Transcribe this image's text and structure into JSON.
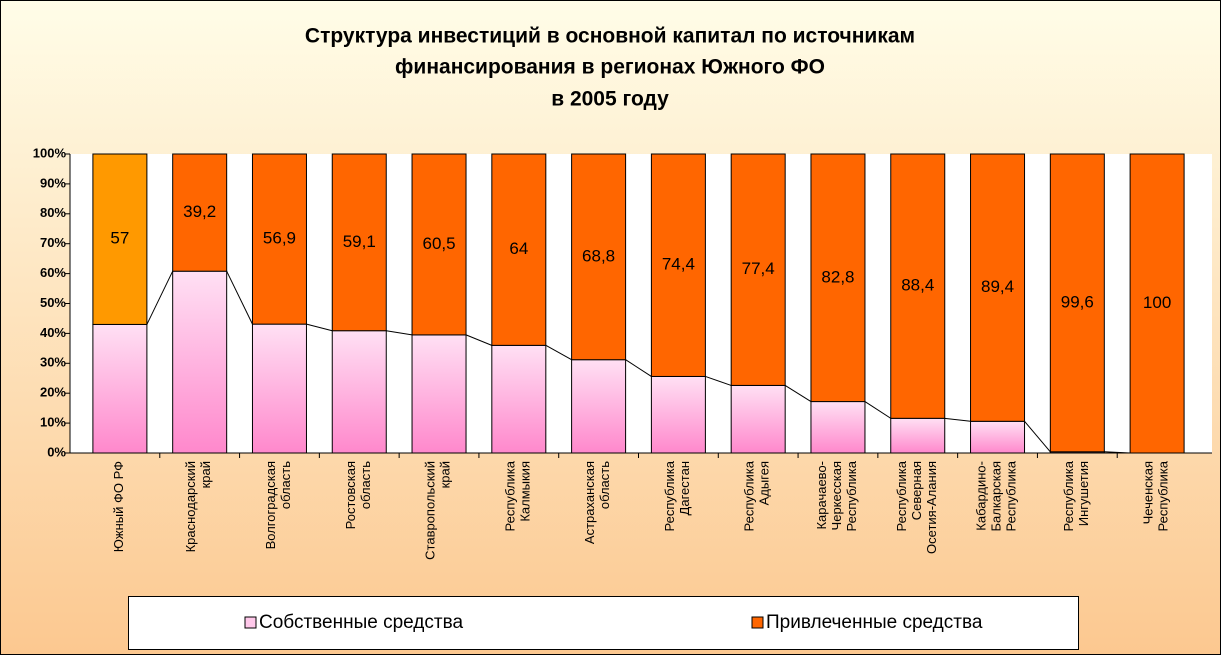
{
  "chart_data": {
    "type": "stacked_bar_100",
    "title": [
      "Структура инвестиций в основной капитал по источникам",
      "финансирования в регионах Южного ФО",
      "в 2005 году"
    ],
    "categories": [
      "Южный ФО РФ",
      "Краснодарский\nкрай",
      "Волгоградская\nобласть",
      "Ростовская\nобласть",
      "Ставропольский\nкрай",
      "Республика\nКалмыкия",
      "Астраханская\nобласть",
      "Республика\nДагестан",
      "Республика\nАдыгея",
      "Карачаево-\nЧеркесская\nРеспублика",
      "Республика\nСеверная\nОсетия-Алания",
      "Кабардино-\nБалкарская\nРеспублика",
      "Республика\nИнгушетия",
      "Чеченская\nРеспублика"
    ],
    "series": [
      {
        "name": "Собственные средства",
        "color": "#ff99d6",
        "values": [
          43,
          60.8,
          43.1,
          40.9,
          39.5,
          36,
          31.2,
          25.6,
          22.6,
          17.2,
          11.6,
          10.6,
          0.4,
          0
        ]
      },
      {
        "name": "Привлеченные средства",
        "color": "#ff6600",
        "colors": [
          "#ff9900",
          "#ff6600",
          "#ff6600",
          "#ff6600",
          "#ff6600",
          "#ff6600",
          "#ff6600",
          "#ff6600",
          "#ff6600",
          "#ff6600",
          "#ff6600",
          "#ff6600",
          "#ff6600",
          "#ff6600"
        ],
        "values": [
          57,
          39.2,
          56.9,
          59.1,
          60.5,
          64,
          68.8,
          74.4,
          77.4,
          82.8,
          88.4,
          89.4,
          99.6,
          100
        ],
        "value_labels": [
          "57",
          "39,2",
          "56,9",
          "59,1",
          "60,5",
          "64",
          "68,8",
          "74,4",
          "77,4",
          "82,8",
          "88,4",
          "89,4",
          "99,6",
          "100"
        ]
      }
    ],
    "ylim": [
      0,
      100
    ],
    "yticks": [
      {
        "value": 0,
        "label": "0%"
      },
      {
        "value": 10,
        "label": "10%"
      },
      {
        "value": 20,
        "label": "20%"
      },
      {
        "value": 30,
        "label": "30%"
      },
      {
        "value": 40,
        "label": "40%"
      },
      {
        "value": 50,
        "label": "50%"
      },
      {
        "value": 60,
        "label": "60%"
      },
      {
        "value": 70,
        "label": "70%"
      },
      {
        "value": 80,
        "label": "80%"
      },
      {
        "value": 90,
        "label": "90%"
      },
      {
        "value": 100,
        "label": "100%"
      }
    ],
    "grid": false,
    "legend": "bottom"
  }
}
